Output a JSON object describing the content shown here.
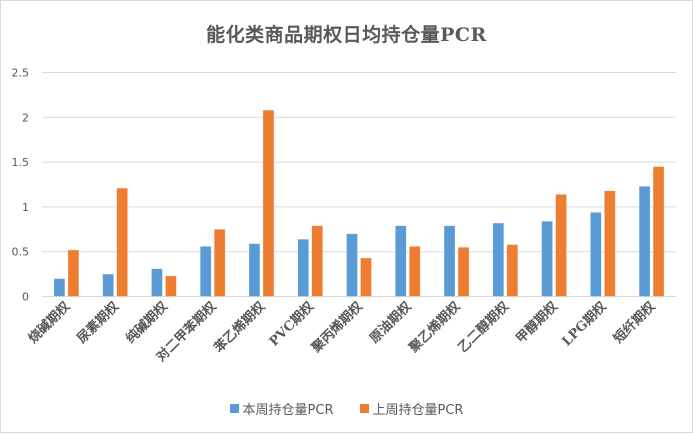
{
  "chart_data": {
    "type": "bar",
    "title": "能化类商品期权日均持仓量PCR",
    "xlabel": "",
    "ylabel": "",
    "ylim": [
      0,
      2.5
    ],
    "yticks": [
      "0",
      "0.5",
      "1",
      "1.5",
      "2",
      "2.5"
    ],
    "grid": true,
    "legend_position": "bottom",
    "categories": [
      "烧碱期权",
      "尿素期权",
      "纯碱期权",
      "对二甲苯期权",
      "苯乙烯期权",
      "PVC期权",
      "聚丙烯期权",
      "原油期权",
      "聚乙烯期权",
      "乙二醇期权",
      "甲醇期权",
      "LPG期权",
      "短纤期权"
    ],
    "series": [
      {
        "name": "本周持仓量PCR",
        "color": "#5b9bd5",
        "values": [
          0.2,
          0.25,
          0.31,
          0.56,
          0.59,
          0.64,
          0.7,
          0.79,
          0.79,
          0.82,
          0.84,
          0.94,
          1.23
        ]
      },
      {
        "name": "上周持仓量PCR",
        "color": "#ed7d31",
        "values": [
          0.52,
          1.21,
          0.23,
          0.75,
          2.08,
          0.79,
          0.43,
          0.56,
          0.55,
          0.58,
          1.14,
          1.18,
          1.45
        ]
      }
    ]
  }
}
